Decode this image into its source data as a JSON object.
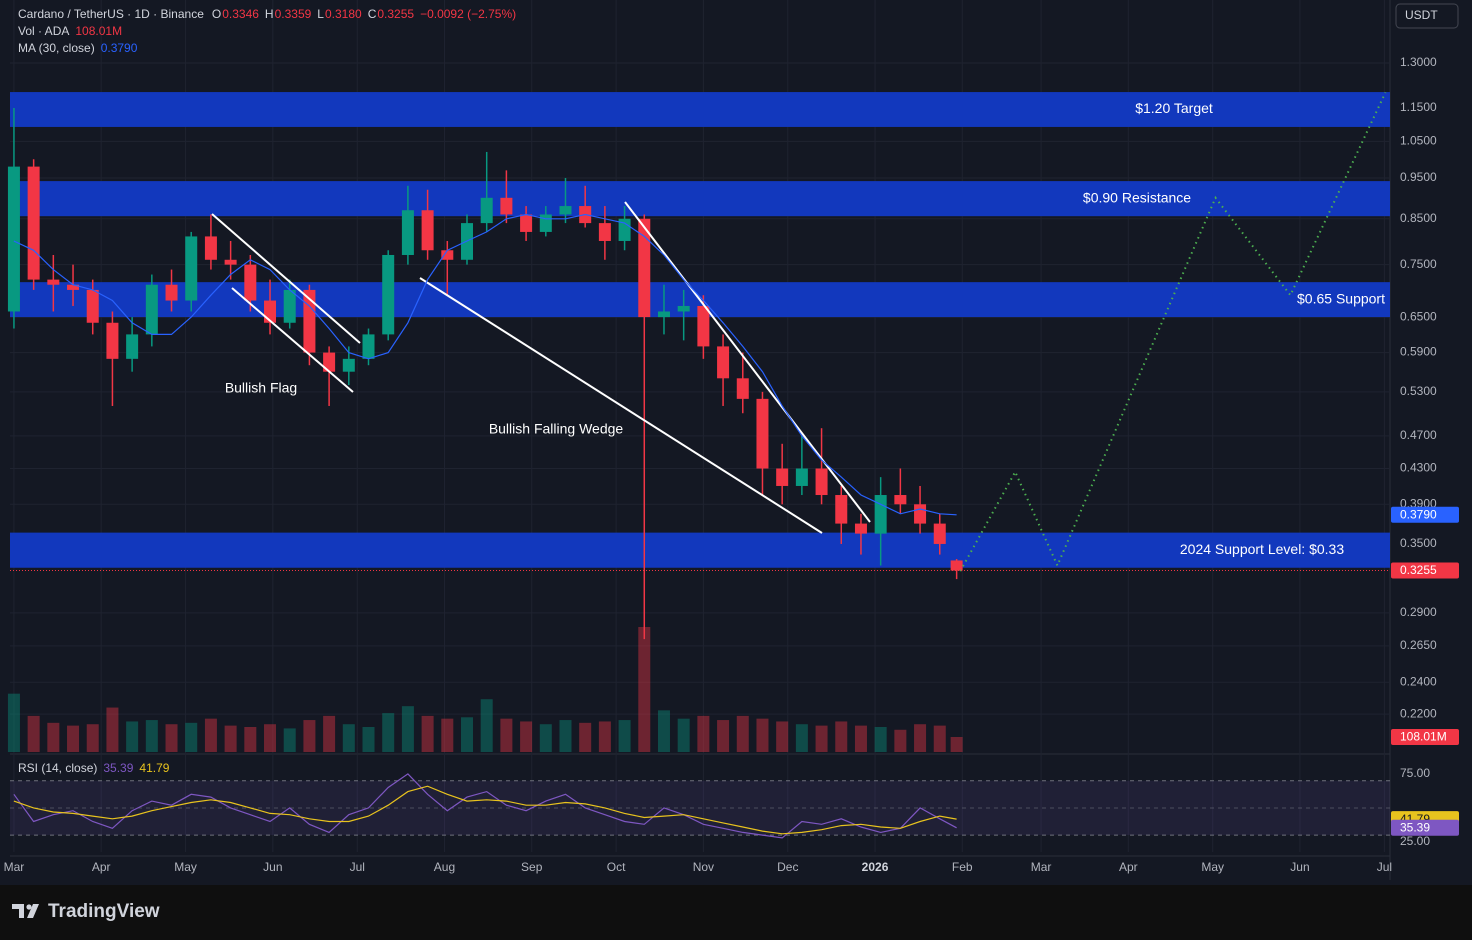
{
  "chart_data": {
    "type": "candlestick",
    "title": "Cardano / TetherUS · 1D · Binance",
    "ohlc_legend": [
      {
        "key": "O",
        "value": "0.3346"
      },
      {
        "key": "H",
        "value": "0.3359"
      },
      {
        "key": "L",
        "value": "0.3180"
      },
      {
        "key": "C",
        "value": "0.3255"
      }
    ],
    "change": "−0.0092 (−2.75%)",
    "currency": "USDT",
    "up_color": "#089981",
    "down_color": "#f23645",
    "grid": true,
    "log_scale": true,
    "x": [
      0,
      7,
      14,
      21,
      28,
      35,
      42,
      49,
      56,
      63,
      70,
      77,
      84,
      91,
      98,
      105,
      112,
      119,
      126,
      133,
      140,
      147,
      154,
      161,
      168,
      175,
      182,
      189,
      196,
      203,
      210,
      217,
      224,
      231,
      238,
      245,
      252,
      259,
      266,
      273,
      280,
      287,
      294,
      301,
      308,
      315,
      322,
      329,
      335
    ],
    "open": [
      0.66,
      0.98,
      0.72,
      0.71,
      0.7,
      0.64,
      0.58,
      0.62,
      0.71,
      0.68,
      0.81,
      0.76,
      0.75,
      0.68,
      0.64,
      0.7,
      0.59,
      0.56,
      0.58,
      0.62,
      0.77,
      0.87,
      0.78,
      0.76,
      0.84,
      0.9,
      0.86,
      0.82,
      0.86,
      0.88,
      0.84,
      0.8,
      0.85,
      0.65,
      0.66,
      0.67,
      0.6,
      0.55,
      0.52,
      0.43,
      0.41,
      0.43,
      0.4,
      0.37,
      0.36,
      0.4,
      0.39,
      0.37,
      0.3346
    ],
    "high": [
      1.15,
      1.0,
      0.77,
      0.75,
      0.72,
      0.66,
      0.65,
      0.73,
      0.74,
      0.82,
      0.86,
      0.8,
      0.77,
      0.72,
      0.72,
      0.71,
      0.6,
      0.6,
      0.63,
      0.78,
      0.93,
      0.92,
      0.8,
      0.86,
      1.02,
      0.97,
      0.88,
      0.88,
      0.95,
      0.93,
      0.88,
      0.88,
      0.86,
      0.71,
      0.7,
      0.69,
      0.62,
      0.59,
      0.53,
      0.46,
      0.47,
      0.48,
      0.41,
      0.38,
      0.42,
      0.43,
      0.41,
      0.38,
      0.3359
    ],
    "low": [
      0.63,
      0.7,
      0.66,
      0.67,
      0.62,
      0.51,
      0.56,
      0.6,
      0.66,
      0.66,
      0.74,
      0.72,
      0.66,
      0.62,
      0.63,
      0.57,
      0.51,
      0.54,
      0.57,
      0.61,
      0.75,
      0.76,
      0.69,
      0.75,
      0.82,
      0.84,
      0.8,
      0.81,
      0.84,
      0.83,
      0.76,
      0.78,
      0.27,
      0.62,
      0.61,
      0.58,
      0.51,
      0.5,
      0.4,
      0.39,
      0.4,
      0.39,
      0.35,
      0.34,
      0.33,
      0.38,
      0.36,
      0.34,
      0.318
    ],
    "close": [
      0.98,
      0.72,
      0.71,
      0.7,
      0.64,
      0.58,
      0.62,
      0.71,
      0.68,
      0.81,
      0.76,
      0.75,
      0.68,
      0.64,
      0.7,
      0.59,
      0.56,
      0.58,
      0.62,
      0.77,
      0.87,
      0.78,
      0.76,
      0.84,
      0.9,
      0.86,
      0.82,
      0.86,
      0.88,
      0.84,
      0.8,
      0.85,
      0.65,
      0.66,
      0.67,
      0.6,
      0.55,
      0.52,
      0.43,
      0.41,
      0.43,
      0.4,
      0.37,
      0.36,
      0.4,
      0.39,
      0.37,
      0.35,
      0.3255
    ],
    "xlim": [
      -1.4,
      489
    ],
    "xticks": [
      {
        "value": 0,
        "label": "Mar"
      },
      {
        "value": 31,
        "label": "Apr"
      },
      {
        "value": 61,
        "label": "May"
      },
      {
        "value": 92,
        "label": "Jun"
      },
      {
        "value": 122,
        "label": "Jul"
      },
      {
        "value": 153,
        "label": "Aug"
      },
      {
        "value": 184,
        "label": "Sep"
      },
      {
        "value": 214,
        "label": "Oct"
      },
      {
        "value": 245,
        "label": "Nov"
      },
      {
        "value": 275,
        "label": "Dec"
      },
      {
        "value": 306,
        "label": "2026"
      },
      {
        "value": 337,
        "label": "Feb"
      },
      {
        "value": 365,
        "label": "Mar"
      },
      {
        "value": 396,
        "label": "Apr"
      },
      {
        "value": 426,
        "label": "May"
      },
      {
        "value": 457,
        "label": "Jun"
      },
      {
        "value": 487,
        "label": "Jul"
      }
    ],
    "ylim": [
      0.1984,
      1.544
    ],
    "yticks": [
      {
        "value": 1.3,
        "label": "1.3000"
      },
      {
        "value": 1.15,
        "label": "1.1500"
      },
      {
        "value": 1.05,
        "label": "1.0500"
      },
      {
        "value": 0.95,
        "label": "0.9500"
      },
      {
        "value": 0.85,
        "label": "0.8500"
      },
      {
        "value": 0.75,
        "label": "0.7500"
      },
      {
        "value": 0.65,
        "label": "0.6500"
      },
      {
        "value": 0.59,
        "label": "0.5900"
      },
      {
        "value": 0.53,
        "label": "0.5300"
      },
      {
        "value": 0.47,
        "label": "0.4700"
      },
      {
        "value": 0.43,
        "label": "0.4300"
      },
      {
        "value": 0.39,
        "label": "0.3900"
      },
      {
        "value": 0.35,
        "label": "0.3500"
      },
      {
        "value": 0.29,
        "label": "0.2900"
      },
      {
        "value": 0.265,
        "label": "0.2650"
      },
      {
        "value": 0.24,
        "label": "0.2400"
      },
      {
        "value": 0.22,
        "label": "0.2200"
      }
    ],
    "volume": {
      "name": "Vol · ADA",
      "ylim": [
        0,
        1440
      ],
      "values": [
        420,
        260,
        210,
        190,
        200,
        320,
        220,
        230,
        200,
        210,
        240,
        190,
        180,
        200,
        170,
        230,
        260,
        200,
        180,
        280,
        330,
        260,
        240,
        250,
        380,
        240,
        220,
        200,
        230,
        210,
        220,
        230,
        900,
        300,
        240,
        260,
        230,
        260,
        240,
        220,
        200,
        190,
        220,
        190,
        180,
        160,
        200,
        190,
        108.01
      ],
      "value_labels": [
        null,
        null,
        null,
        null,
        null,
        null,
        null,
        null,
        null,
        null,
        null,
        null,
        null,
        null,
        null,
        null,
        null,
        null,
        null,
        null,
        null,
        null,
        null,
        null,
        null,
        null,
        null,
        null,
        null,
        null,
        null,
        null,
        null,
        null,
        null,
        null,
        null,
        null,
        null,
        null,
        null,
        null,
        null,
        null,
        null,
        null,
        null,
        null,
        "108.01M"
      ]
    },
    "ma": {
      "name": "MA (30, close)",
      "color": "#2962ff",
      "values": [
        0.8,
        0.78,
        0.74,
        0.71,
        0.7,
        0.68,
        0.64,
        0.62,
        0.62,
        0.65,
        0.69,
        0.73,
        0.76,
        0.74,
        0.7,
        0.67,
        0.63,
        0.59,
        0.58,
        0.59,
        0.64,
        0.72,
        0.78,
        0.8,
        0.82,
        0.85,
        0.86,
        0.85,
        0.85,
        0.86,
        0.85,
        0.84,
        0.81,
        0.77,
        0.72,
        0.68,
        0.64,
        0.6,
        0.56,
        0.51,
        0.47,
        0.44,
        0.42,
        0.4,
        0.39,
        0.38,
        0.385,
        0.38,
        0.379
      ],
      "value_labels": [
        null,
        null,
        null,
        null,
        null,
        null,
        null,
        null,
        null,
        null,
        null,
        null,
        null,
        null,
        null,
        null,
        null,
        null,
        null,
        null,
        null,
        null,
        null,
        null,
        null,
        null,
        null,
        null,
        null,
        null,
        null,
        null,
        null,
        null,
        null,
        null,
        null,
        null,
        null,
        null,
        null,
        null,
        null,
        null,
        null,
        null,
        null,
        null,
        "0.3790"
      ]
    },
    "zone_color": "#1238bd",
    "zones": [
      {
        "label": "$1.20 Target",
        "range": [
          1.092,
          1.201
        ]
      },
      {
        "label": "$0.90 Resistance",
        "range": [
          0.856,
          0.942
        ]
      },
      {
        "label": "$0.65 Support",
        "range": [
          0.65,
          0.715
        ]
      },
      {
        "label": "2024 Support Level: $0.33",
        "range": [
          0.328,
          0.361
        ]
      }
    ],
    "annotations": [
      "Bullish Flag",
      "Bullish Falling Wedge"
    ],
    "projection": {
      "color": "#4caf50",
      "x": [
        336.3,
        355.8,
        370.8,
        427,
        453.6,
        487.4
      ],
      "y": [
        0.325,
        0.426,
        0.33,
        0.9,
        0.69,
        1.2
      ]
    },
    "rsi": {
      "name": "RSI (14, close)",
      "color": "#7e57c2",
      "ma_color": "#e8c31e",
      "ylim": [
        17.6,
        88.2
      ],
      "yticks": [
        {
          "value": 75,
          "label": "75.00"
        },
        {
          "value": 25,
          "label": "25.00"
        }
      ],
      "levels": [
        70,
        50,
        30
      ],
      "values": [
        60,
        40,
        45,
        48,
        40,
        35,
        48,
        55,
        52,
        60,
        58,
        50,
        45,
        40,
        50,
        38,
        32,
        45,
        50,
        65,
        75,
        60,
        48,
        58,
        62,
        52,
        48,
        55,
        60,
        50,
        45,
        40,
        38,
        50,
        45,
        38,
        35,
        32,
        30,
        28,
        40,
        38,
        42,
        36,
        32,
        35,
        50,
        42,
        35.39
      ],
      "ma_values": [
        55,
        50,
        47,
        46,
        44,
        42,
        44,
        48,
        51,
        54,
        56,
        54,
        50,
        46,
        45,
        42,
        40,
        40,
        44,
        52,
        62,
        66,
        60,
        55,
        56,
        55,
        52,
        52,
        54,
        53,
        50,
        46,
        43,
        44,
        45,
        42,
        39,
        36,
        33,
        31,
        32,
        34,
        37,
        38,
        36,
        35,
        40,
        44,
        41.79
      ]
    }
  },
  "footer": {
    "brand": "TradingView"
  }
}
